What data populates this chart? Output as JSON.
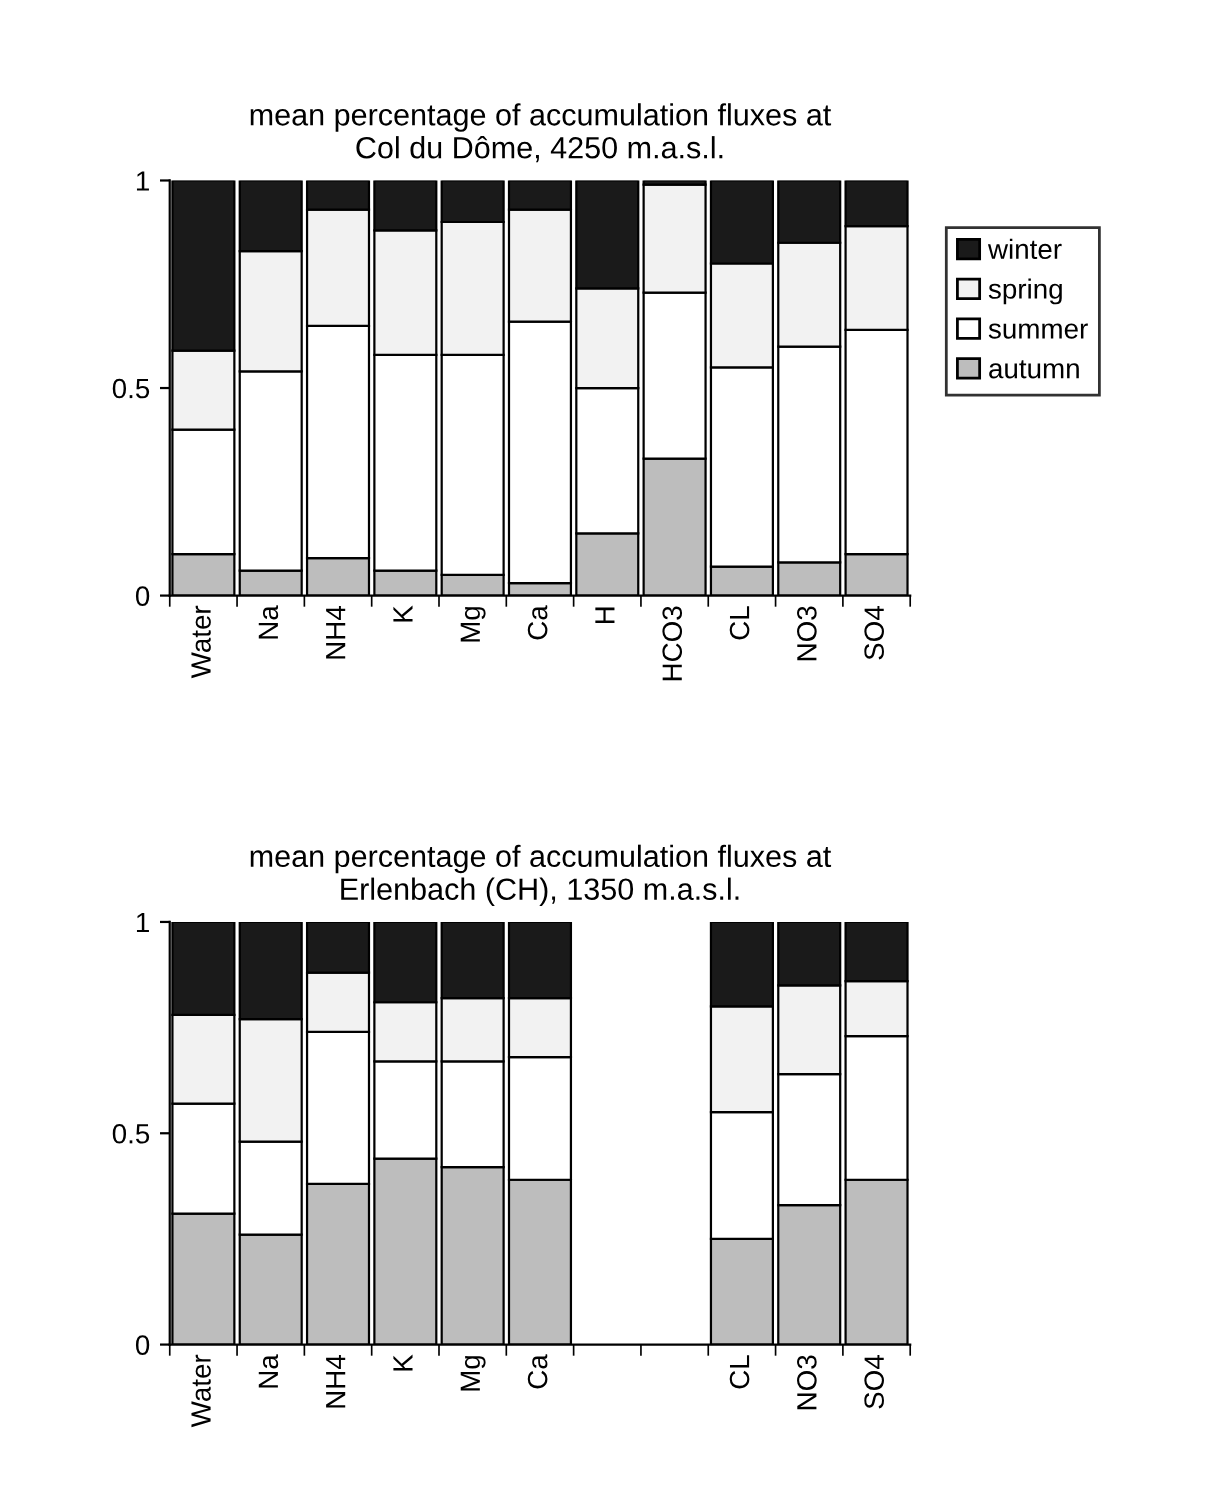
{
  "chart_data": [
    {
      "type": "bar",
      "stacked": true,
      "title": "mean percentage of accumulation fluxes at\nCol du Dôme, 4250 m.a.s.l.",
      "categories": [
        "Water",
        "Na",
        "NH4",
        "K",
        "Mg",
        "Ca",
        "H",
        "HCO3",
        "CL",
        "NO3",
        "SO4"
      ],
      "ylim": [
        0,
        1
      ],
      "yticks": [
        0,
        0.5,
        1
      ],
      "legend": "right",
      "grid": false,
      "series": [
        {
          "name": "autumn",
          "color": "#bdbdbd",
          "values": [
            0.1,
            0.06,
            0.09,
            0.06,
            0.05,
            0.03,
            0.15,
            0.33,
            0.07,
            0.08,
            0.1
          ]
        },
        {
          "name": "summer",
          "color": "#ffffff",
          "values": [
            0.3,
            0.48,
            0.56,
            0.52,
            0.53,
            0.63,
            0.35,
            0.4,
            0.48,
            0.52,
            0.54
          ]
        },
        {
          "name": "spring",
          "color": "#f2f2f2",
          "values": [
            0.19,
            0.29,
            0.28,
            0.3,
            0.32,
            0.27,
            0.24,
            0.26,
            0.25,
            0.25,
            0.25
          ]
        },
        {
          "name": "winter",
          "color": "#1a1a1a",
          "values": [
            0.41,
            0.17,
            0.07,
            0.12,
            0.1,
            0.07,
            0.26,
            0.01,
            0.2,
            0.15,
            0.11
          ]
        }
      ]
    },
    {
      "type": "bar",
      "stacked": true,
      "title": "mean percentage of accumulation fluxes at\nErlenbach (CH), 1350 m.a.s.l.",
      "categories": [
        "Water",
        "Na",
        "NH4",
        "K",
        "Mg",
        "Ca",
        null,
        null,
        "CL",
        "NO3",
        "SO4"
      ],
      "ylim": [
        0,
        1
      ],
      "yticks": [
        0,
        0.5,
        1
      ],
      "legend": false,
      "grid": false,
      "series": [
        {
          "color": "#bdbdbd",
          "values": [
            0.31,
            0.26,
            0.38,
            0.44,
            0.42,
            0.39,
            null,
            null,
            0.25,
            0.33,
            0.39
          ]
        },
        {
          "color": "#ffffff",
          "values": [
            0.26,
            0.22,
            0.36,
            0.23,
            0.25,
            0.29,
            null,
            null,
            0.3,
            0.31,
            0.34
          ]
        },
        {
          "color": "#f2f2f2",
          "values": [
            0.21,
            0.29,
            0.14,
            0.14,
            0.15,
            0.14,
            null,
            null,
            0.25,
            0.21,
            0.13
          ]
        },
        {
          "color": "#1a1a1a",
          "values": [
            0.22,
            0.23,
            0.12,
            0.19,
            0.18,
            0.18,
            null,
            null,
            0.2,
            0.15,
            0.14
          ]
        }
      ]
    }
  ]
}
